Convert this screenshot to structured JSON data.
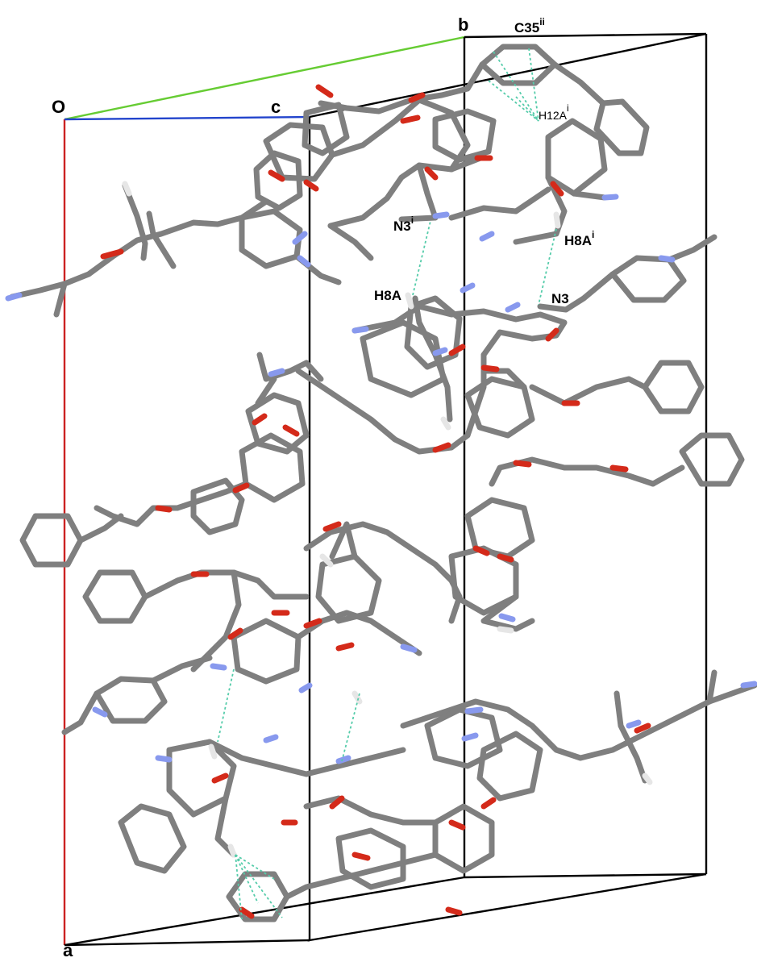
{
  "axes": {
    "origin": "O",
    "a": "a",
    "b": "b",
    "c": "c"
  },
  "atom_labels": {
    "c35": {
      "base": "C35",
      "sup": "ii"
    },
    "h12a": {
      "base": "H12A",
      "sup": "i"
    },
    "n3_sym": {
      "base": "N3",
      "sup": "i"
    },
    "h8a_sym": {
      "base": "H8A",
      "sup": "i"
    },
    "h8a": {
      "base": "H8A",
      "sup": ""
    },
    "n3": {
      "base": "N3",
      "sup": ""
    }
  },
  "colors": {
    "a_axis": "#cc2222",
    "b_axis": "#66cc33",
    "c_axis": "#2244cc",
    "cell_edge": "#000000",
    "bond_carbon": "#7f7f7f",
    "oxygen": "#d42a1a",
    "nitrogen": "#8899ee",
    "hydrogen": "#e6e6e6",
    "hbond": "#55ccaa"
  }
}
